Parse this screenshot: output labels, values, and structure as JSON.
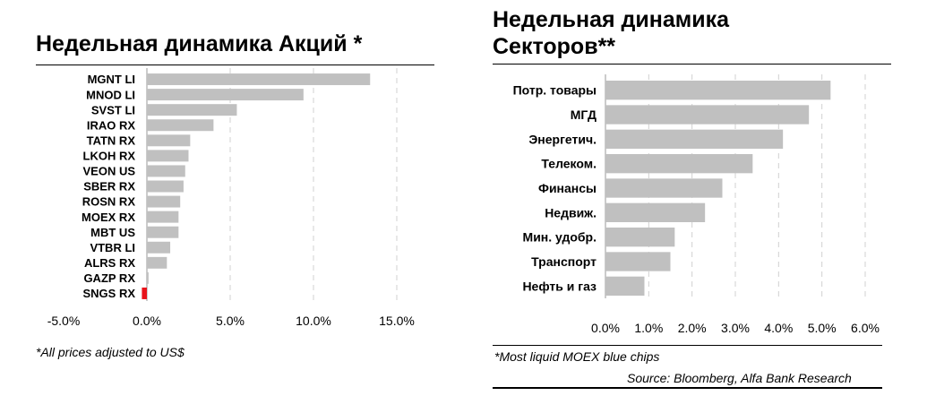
{
  "colors": {
    "bar": "#c0c0c0",
    "highlight": "#e8131b",
    "grid": "#d0d0d0"
  },
  "left": {
    "title": "Недельная динамика Акций *",
    "footnote": "*All prices adjusted to US$"
  },
  "right": {
    "title_line1": "Недельная динамика",
    "title_line2": "Секторов**",
    "footnote": "*Most liquid MOEX blue chips",
    "source": "Source: Bloomberg, Alfa Bank Research"
  },
  "chart_data": [
    {
      "type": "bar",
      "orientation": "horizontal",
      "title": "Недельная динамика Акций *",
      "categories": [
        "MGNT LI",
        "MNOD LI",
        "SVST LI",
        "IRAO RX",
        "TATN RX",
        "LKOH RX",
        "VEON US",
        "SBER RX",
        "ROSN RX",
        "MOEX RX",
        "MBT US",
        "VTBR LI",
        "ALRS RX",
        "GAZP RX",
        "SNGS RX"
      ],
      "values": [
        13.4,
        9.4,
        5.4,
        4.0,
        2.6,
        2.5,
        2.3,
        2.2,
        2.0,
        1.9,
        1.9,
        1.4,
        1.2,
        0.1,
        -0.3
      ],
      "xlim": [
        -5,
        15
      ],
      "xticks": [
        -5,
        0,
        5,
        10,
        15
      ],
      "xtick_labels": [
        "-5.0%",
        "0.0%",
        "5.0%",
        "10.0%",
        "15.0%"
      ],
      "grid": "vertical-dashed",
      "highlight_negative": true
    },
    {
      "type": "bar",
      "orientation": "horizontal",
      "title": "Недельная динамика Секторов**",
      "categories": [
        "Потр. товары",
        "МГД",
        "Энергетич.",
        "Телеком.",
        "Финансы",
        "Недвиж.",
        "Мин. удобр.",
        "Транспорт",
        "Нефть и газ"
      ],
      "values": [
        5.2,
        4.7,
        4.1,
        3.4,
        2.7,
        2.3,
        1.6,
        1.5,
        0.9
      ],
      "xlim": [
        0,
        6
      ],
      "xticks": [
        0,
        1,
        2,
        3,
        4,
        5,
        6
      ],
      "xtick_labels": [
        "0.0%",
        "1.0%",
        "2.0%",
        "3.0%",
        "4.0%",
        "5.0%",
        "6.0%"
      ],
      "grid": "vertical-dashed"
    }
  ]
}
